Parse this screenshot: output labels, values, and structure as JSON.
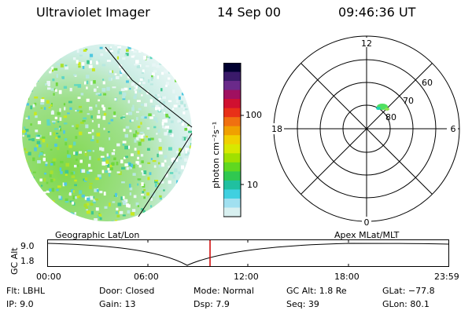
{
  "header": {
    "title": "Ultraviolet Imager",
    "date": "14 Sep 00",
    "time": "09:46:36 UT"
  },
  "colorbar": {
    "unit_label": "photon cm⁻²s⁻¹",
    "ticks": [
      "100",
      "10"
    ],
    "colors": [
      "#000030",
      "#3a1a6a",
      "#6a2a8a",
      "#a01060",
      "#d01030",
      "#e83018",
      "#f07010",
      "#f0a000",
      "#f0d000",
      "#d8e800",
      "#a0e000",
      "#60d820",
      "#30c850",
      "#20c0a0",
      "#40d0e0",
      "#a0e0f0",
      "#d8f0f0"
    ]
  },
  "polar_plot": {
    "mlt_labels": {
      "top": "12",
      "left": "18",
      "right": "6",
      "bottom": "0"
    },
    "lat_labels": [
      "60",
      "70",
      "80"
    ]
  },
  "timeline": {
    "left_label": "Geographic Lat/Lon",
    "right_label": "Apex MLat/MLT",
    "y_axis_label": "GC Alt",
    "y_ticks": [
      "9.0",
      "1.8"
    ],
    "x_ticks": [
      "00:00",
      "06:00",
      "12:00",
      "18:00",
      "23:59"
    ],
    "marker_color": "#d00000"
  },
  "status": {
    "flt": "Flt: LBHL",
    "ip": "IP:  9.0",
    "door": "Door: Closed",
    "gain": "Gain: 13",
    "mode": "Mode: Normal",
    "dsp": "Dsp:    7.9",
    "gcalt": "GC Alt: 1.8 Re",
    "seq": "Seq: 39",
    "glat": "GLat: −77.8",
    "glon": "GLon:  80.1"
  }
}
